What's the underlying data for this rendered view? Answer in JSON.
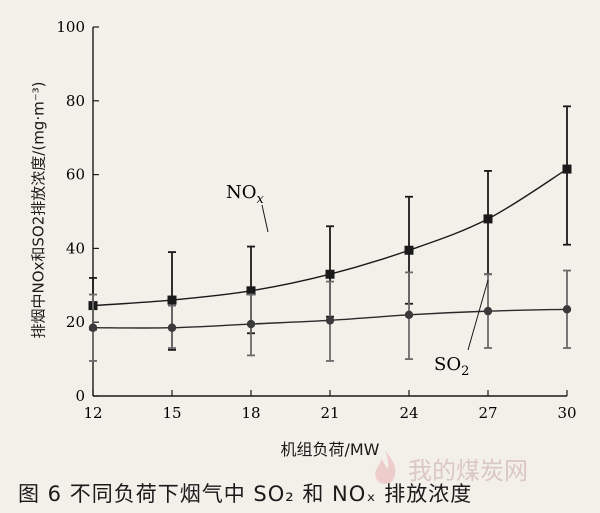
{
  "chart_data": {
    "type": "line",
    "xlabel": "机组负荷/MW",
    "ylabel": "排烟中NOx和SO2排放浓度/(mg·m⁻³)",
    "x": [
      12,
      15,
      18,
      21,
      24,
      27,
      30
    ],
    "xlim": [
      12,
      30
    ],
    "ylim": [
      0,
      100
    ],
    "xticks": [
      "12",
      "15",
      "18",
      "21",
      "24",
      "27",
      "30"
    ],
    "yticks": [
      "0",
      "20",
      "40",
      "60",
      "80",
      "100"
    ],
    "grid": false,
    "series": [
      {
        "name": "NOx",
        "label_main": "NO",
        "label_sub": "x",
        "color": "#1a1a1a",
        "marker": "square",
        "values": [
          24.5,
          26,
          28.5,
          33,
          39.5,
          48,
          61.5
        ],
        "err_low": [
          18,
          12.5,
          17,
          21.5,
          25,
          33,
          41
        ],
        "err_high": [
          32,
          39,
          40.5,
          46,
          54,
          61,
          78.5
        ]
      },
      {
        "name": "SO2",
        "label_main": "SO",
        "label_sub": "2",
        "color": "#2a2a2a",
        "marker": "circle",
        "values": [
          18.5,
          18.5,
          19.5,
          20.5,
          22,
          23,
          23.5
        ],
        "err_low": [
          9.5,
          13,
          11,
          9.5,
          10,
          13,
          13
        ],
        "err_high": [
          27.5,
          24.5,
          27.5,
          31,
          33.5,
          33,
          34
        ]
      }
    ]
  },
  "caption": "图 6    不同负荷下烟气中 SO₂ 和 NOₓ 排放浓度",
  "watermark": "我的煤炭网"
}
